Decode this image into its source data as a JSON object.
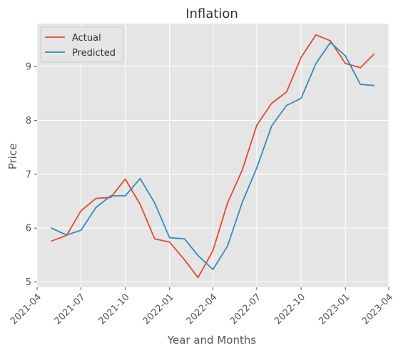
{
  "chart_data": {
    "type": "line",
    "title": "Inflation",
    "xlabel": "Year and Months",
    "ylabel": "Price",
    "x_type": "date",
    "xlim": [
      "2021-04-01",
      "2023-04-01"
    ],
    "ylim": [
      4.9,
      9.8
    ],
    "x_ticks": [
      "2021-04",
      "2021-07",
      "2021-10",
      "2022-01",
      "2022-04",
      "2022-07",
      "2022-10",
      "2023-01",
      "2023-04"
    ],
    "y_ticks": [
      5,
      6,
      7,
      8,
      9
    ],
    "grid": true,
    "legend_position": "top-left",
    "x": [
      "2021-05-01",
      "2021-06-01",
      "2021-07-01",
      "2021-08-01",
      "2021-09-01",
      "2021-10-01",
      "2021-11-01",
      "2021-12-01",
      "2022-01-01",
      "2022-02-01",
      "2022-03-01",
      "2022-04-01",
      "2022-05-01",
      "2022-06-01",
      "2022-07-01",
      "2022-08-01",
      "2022-09-01",
      "2022-10-01",
      "2022-11-01",
      "2022-12-01",
      "2023-01-01",
      "2023-02-01",
      "2023-03-01"
    ],
    "series": [
      {
        "name": "Actual",
        "color": "#e24a33",
        "values": [
          5.76,
          5.86,
          6.32,
          6.55,
          6.57,
          6.91,
          6.44,
          5.8,
          5.74,
          5.41,
          5.08,
          5.58,
          6.46,
          7.08,
          7.91,
          8.32,
          8.53,
          9.17,
          9.59,
          9.48,
          9.06,
          8.98,
          9.23
        ]
      },
      {
        "name": "Predicted",
        "color": "#348abd",
        "values": [
          6.0,
          5.87,
          5.96,
          6.38,
          6.6,
          6.6,
          6.92,
          6.47,
          5.82,
          5.8,
          5.49,
          5.23,
          5.66,
          6.48,
          7.12,
          7.9,
          8.28,
          8.41,
          9.06,
          9.45,
          9.2,
          8.67,
          8.65
        ]
      }
    ]
  }
}
